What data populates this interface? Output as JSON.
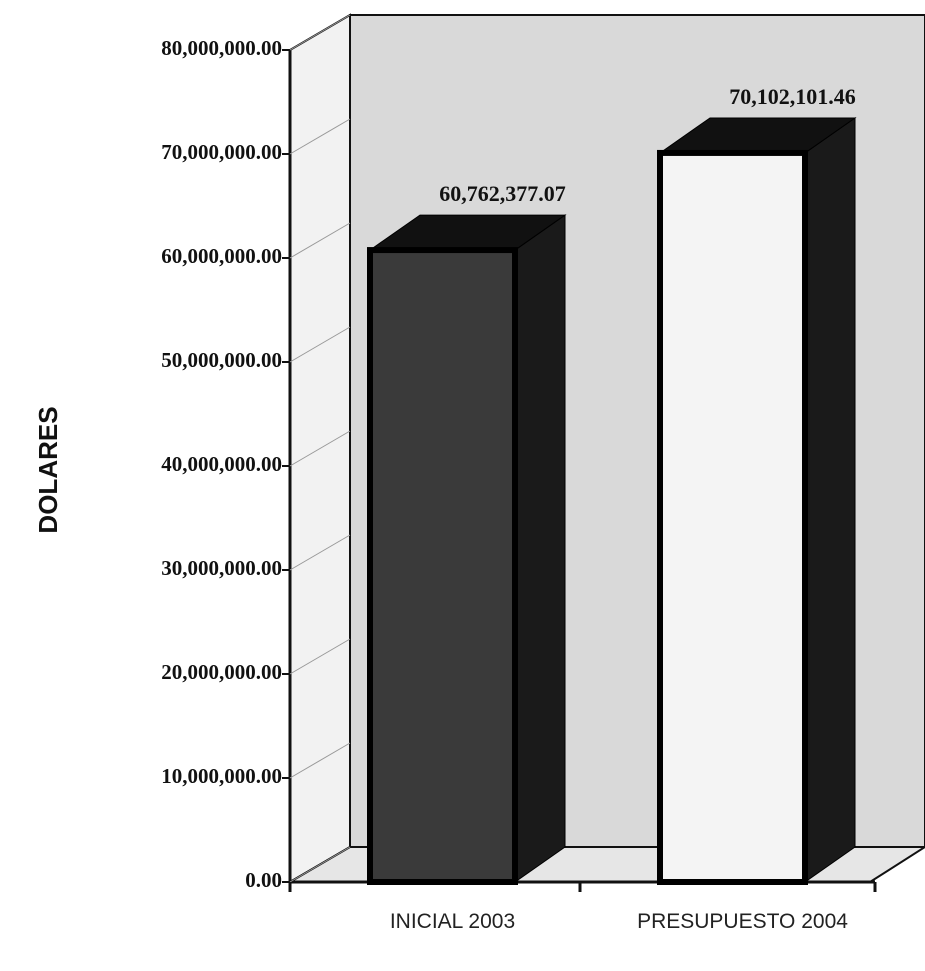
{
  "chart_data": {
    "type": "bar3d",
    "y_label": "DOLARES",
    "categories": [
      "INICIAL 2003",
      "PRESUPUESTO 2004"
    ],
    "values": [
      60762377.07,
      70102101.46
    ],
    "value_labels": [
      "60,762,377.07",
      "70,102,101.46"
    ],
    "colors": [
      "#3a3a3a",
      "#f4f4f4"
    ],
    "ylim": [
      0,
      80000000
    ],
    "yticks": [
      {
        "value": 0,
        "label": "0.00"
      },
      {
        "value": 10000000,
        "label": "10,000,000.00"
      },
      {
        "value": 20000000,
        "label": "20,000,000.00"
      },
      {
        "value": 30000000,
        "label": "30,000,000.00"
      },
      {
        "value": 40000000,
        "label": "40,000,000.00"
      },
      {
        "value": 50000000,
        "label": "50,000,000.00"
      },
      {
        "value": 60000000,
        "label": "60,000,000.00"
      },
      {
        "value": 70000000,
        "label": "70,000,000.00"
      },
      {
        "value": 80000000,
        "label": "80,000,000.00"
      }
    ]
  }
}
